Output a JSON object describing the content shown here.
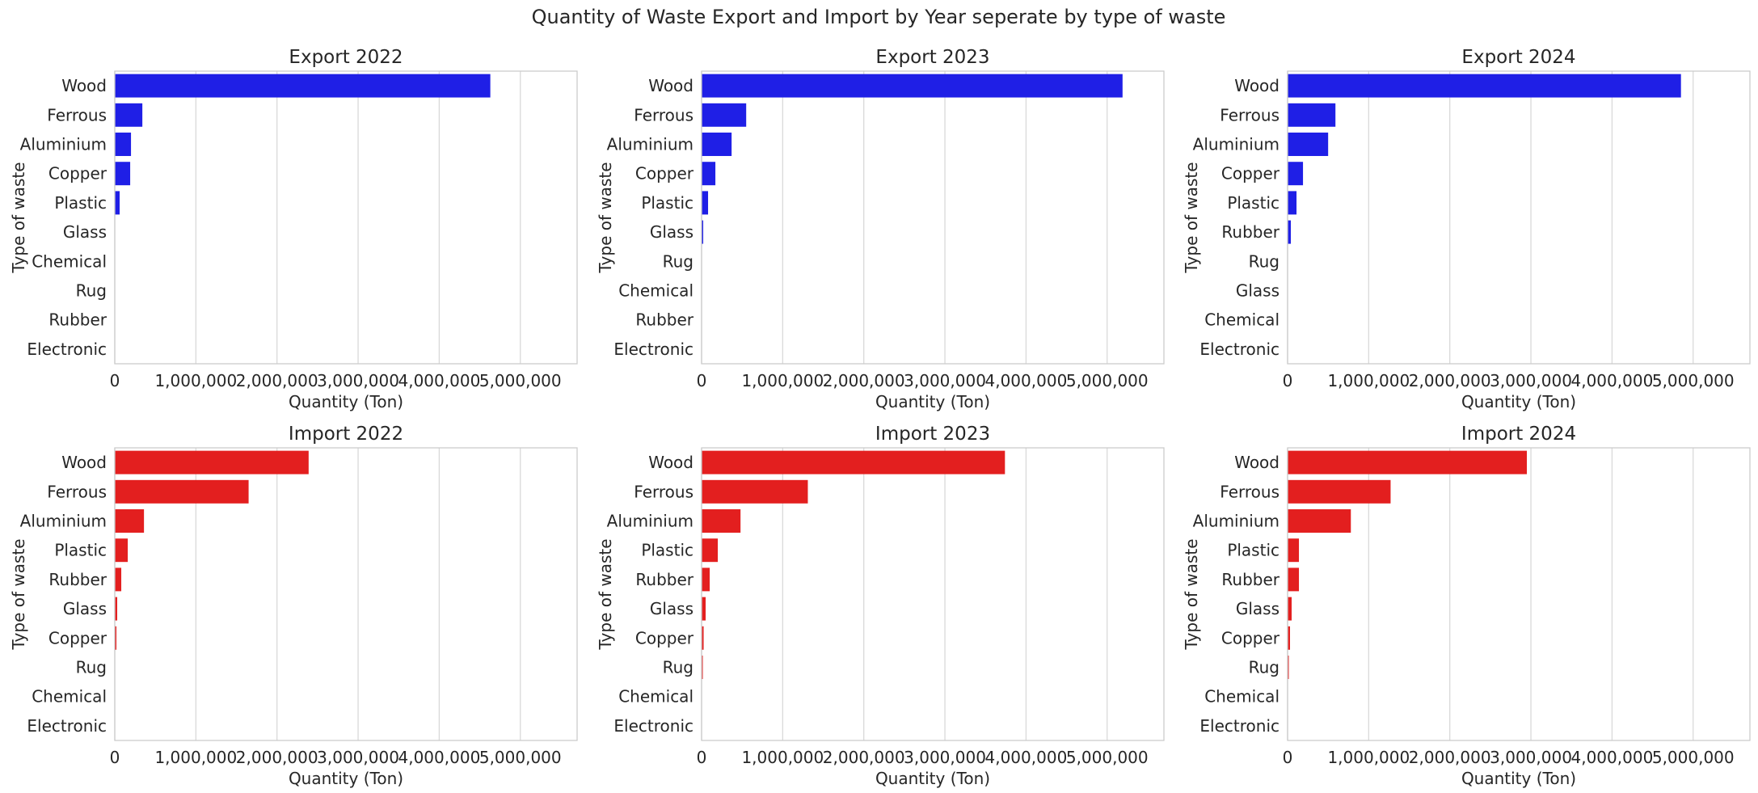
{
  "figure": {
    "title": "Quantity of Waste Export and Import by Year seperate by type of waste"
  },
  "colors": {
    "export": "#1f1fe6",
    "import": "#e31f1f",
    "grid": "#d9d9d9",
    "spine": "#cccccc",
    "text": "#262626"
  },
  "chart_data": [
    {
      "type": "bar",
      "orientation": "horizontal",
      "title": "Export 2022",
      "xlabel": "Quantity (Ton)",
      "ylabel": "Type of waste",
      "xlim": [
        0,
        5700000
      ],
      "xticks": [
        "0",
        "1,000,000",
        "2,000,000",
        "3,000,000",
        "4,000,000",
        "5,000,000"
      ],
      "grid": "vertical",
      "color_key": "export",
      "categories": [
        "Wood",
        "Ferrous",
        "Aluminium",
        "Copper",
        "Plastic",
        "Glass",
        "Chemical",
        "Rug",
        "Rubber",
        "Electronic"
      ],
      "values": [
        4630000,
        340000,
        200000,
        190000,
        60000,
        4000,
        1500,
        1000,
        800,
        300
      ]
    },
    {
      "type": "bar",
      "orientation": "horizontal",
      "title": "Export 2023",
      "xlabel": "Quantity (Ton)",
      "ylabel": "Type of waste",
      "xlim": [
        0,
        5700000
      ],
      "xticks": [
        "0",
        "1,000,000",
        "2,000,000",
        "3,000,000",
        "4,000,000",
        "5,000,000"
      ],
      "grid": "vertical",
      "color_key": "export",
      "categories": [
        "Wood",
        "Ferrous",
        "Aluminium",
        "Copper",
        "Plastic",
        "Glass",
        "Rug",
        "Chemical",
        "Rubber",
        "Electronic"
      ],
      "values": [
        5190000,
        550000,
        370000,
        170000,
        80000,
        20000,
        3000,
        2000,
        1500,
        500
      ]
    },
    {
      "type": "bar",
      "orientation": "horizontal",
      "title": "Export 2024",
      "xlabel": "Quantity (Ton)",
      "ylabel": "Type of waste",
      "xlim": [
        0,
        5700000
      ],
      "xticks": [
        "0",
        "1,000,000",
        "2,000,000",
        "3,000,000",
        "4,000,000",
        "5,000,000"
      ],
      "grid": "vertical",
      "color_key": "export",
      "categories": [
        "Wood",
        "Ferrous",
        "Aluminium",
        "Copper",
        "Plastic",
        "Rubber",
        "Rug",
        "Glass",
        "Chemical",
        "Electronic"
      ],
      "values": [
        4850000,
        590000,
        500000,
        190000,
        110000,
        40000,
        4000,
        3000,
        2000,
        500
      ]
    },
    {
      "type": "bar",
      "orientation": "horizontal",
      "title": "Import 2022",
      "xlabel": "Quantity (Ton)",
      "ylabel": "Type of waste",
      "xlim": [
        0,
        5700000
      ],
      "xticks": [
        "0",
        "1,000,000",
        "2,000,000",
        "3,000,000",
        "4,000,000",
        "5,000,000"
      ],
      "grid": "vertical",
      "color_key": "import",
      "categories": [
        "Wood",
        "Ferrous",
        "Aluminium",
        "Plastic",
        "Rubber",
        "Glass",
        "Copper",
        "Rug",
        "Chemical",
        "Electronic"
      ],
      "values": [
        2390000,
        1650000,
        360000,
        160000,
        80000,
        30000,
        20000,
        2000,
        1000,
        500
      ]
    },
    {
      "type": "bar",
      "orientation": "horizontal",
      "title": "Import 2023",
      "xlabel": "Quantity (Ton)",
      "ylabel": "Type of waste",
      "xlim": [
        0,
        5700000
      ],
      "xticks": [
        "0",
        "1,000,000",
        "2,000,000",
        "3,000,000",
        "4,000,000",
        "5,000,000"
      ],
      "grid": "vertical",
      "color_key": "import",
      "categories": [
        "Wood",
        "Ferrous",
        "Aluminium",
        "Plastic",
        "Rubber",
        "Glass",
        "Copper",
        "Rug",
        "Chemical",
        "Electronic"
      ],
      "values": [
        3740000,
        1310000,
        480000,
        200000,
        100000,
        50000,
        25000,
        15000,
        1500,
        500
      ]
    },
    {
      "type": "bar",
      "orientation": "horizontal",
      "title": "Import 2024",
      "xlabel": "Quantity (Ton)",
      "ylabel": "Type of waste",
      "xlim": [
        0,
        5700000
      ],
      "xticks": [
        "0",
        "1,000,000",
        "2,000,000",
        "3,000,000",
        "4,000,000",
        "5,000,000"
      ],
      "grid": "vertical",
      "color_key": "import",
      "categories": [
        "Wood",
        "Ferrous",
        "Aluminium",
        "Plastic",
        "Rubber",
        "Glass",
        "Copper",
        "Rug",
        "Chemical",
        "Electronic"
      ],
      "values": [
        2950000,
        1270000,
        780000,
        140000,
        140000,
        50000,
        30000,
        15000,
        1500,
        500
      ]
    }
  ]
}
